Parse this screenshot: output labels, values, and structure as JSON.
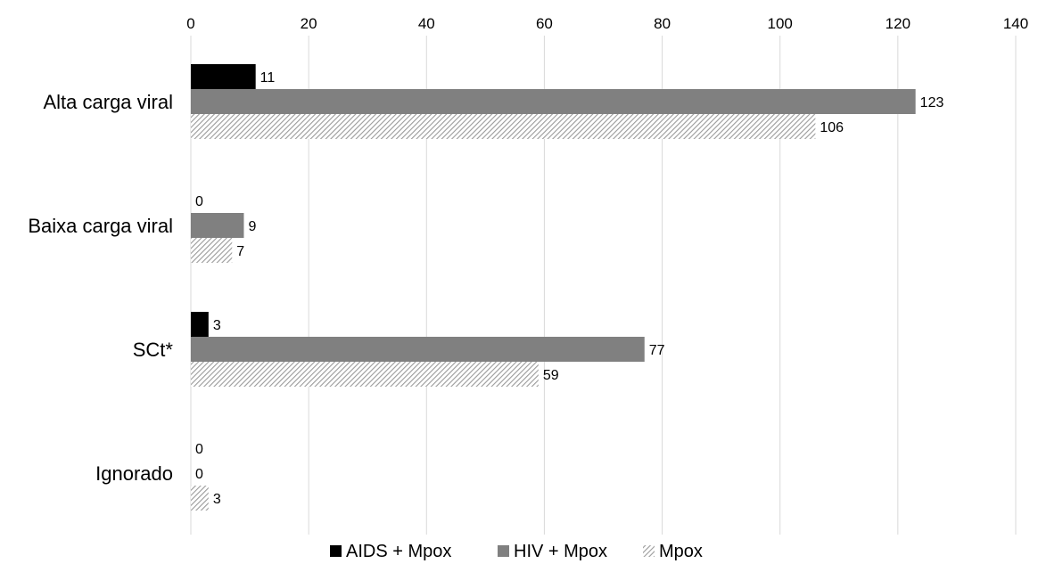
{
  "chart_data": {
    "type": "bar",
    "orientation": "horizontal",
    "title": "",
    "xlabel": "",
    "ylabel": "",
    "xlim": [
      0,
      140
    ],
    "x_ticks": [
      0,
      20,
      40,
      60,
      80,
      100,
      120,
      140
    ],
    "x_axis_position": "top",
    "grid": true,
    "legend_position": "bottom",
    "categories": [
      "Alta carga viral",
      "Baixa carga viral",
      "SCt*",
      "Ignorado"
    ],
    "series": [
      {
        "name": "AIDS + Mpox",
        "values": [
          11,
          0,
          3,
          0
        ],
        "color": "#000000",
        "pattern": "solid"
      },
      {
        "name": "HIV + Mpox",
        "values": [
          123,
          9,
          77,
          0
        ],
        "color": "#808080",
        "pattern": "solid"
      },
      {
        "name": "Mpox",
        "values": [
          106,
          7,
          59,
          3
        ],
        "color": "#b4b4b4",
        "pattern": "diagonal-hatch"
      }
    ]
  }
}
